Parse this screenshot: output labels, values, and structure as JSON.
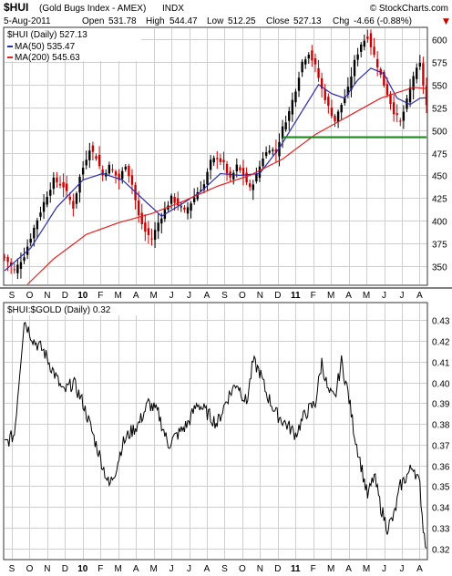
{
  "header": {
    "symbol": "$HUI",
    "name": "(Gold Bugs Index - AMEX)",
    "exchange": "INDX",
    "copyright": "© StockCharts.com",
    "date": "5-Aug-2011",
    "open_label": "Open",
    "open": "531.78",
    "high_label": "High",
    "high": "544.47",
    "low_label": "Low",
    "low": "512.25",
    "close_label": "Close",
    "close": "527.13",
    "chg_label": "Chg",
    "chg": "-4.66 (-0.88%)",
    "chg_arrow": "▼"
  },
  "top_legend": {
    "main": "$HUI (Daily) 527.13",
    "ma50": "MA(50) 535.47",
    "ma200": "MA(200) 545.63"
  },
  "bottom_legend": {
    "main": "$HUI:$GOLD (Daily) 0.32"
  },
  "colors": {
    "price_up": "#000000",
    "price_down": "#cc0000",
    "ma50": "#2b2bb0",
    "ma200": "#e62020",
    "support": "#1a8a1a",
    "ratio": "#000000",
    "chg": "#cc0000"
  },
  "chart_data": [
    {
      "type": "line",
      "ylim": [
        330,
        612
      ],
      "y_ticks": [
        "350",
        "375",
        "400",
        "425",
        "450",
        "475",
        "500",
        "525",
        "550",
        "575",
        "600"
      ],
      "x_ticks": [
        "S",
        "O",
        "N",
        "D",
        "10",
        "F",
        "M",
        "A",
        "M",
        "J",
        "J",
        "A",
        "S",
        "O",
        "N",
        "D",
        "11",
        "F",
        "M",
        "A",
        "M",
        "J",
        "J",
        "A"
      ],
      "price_anchors": [
        [
          0,
          360
        ],
        [
          3,
          345
        ],
        [
          6,
          362
        ],
        [
          9,
          392
        ],
        [
          12,
          420
        ],
        [
          15,
          445
        ],
        [
          18,
          438
        ],
        [
          21,
          415
        ],
        [
          23,
          448
        ],
        [
          26,
          480
        ],
        [
          28,
          470
        ],
        [
          30,
          450
        ],
        [
          32,
          460
        ],
        [
          35,
          445
        ],
        [
          37,
          462
        ],
        [
          39,
          440
        ],
        [
          41,
          405
        ],
        [
          43,
          388
        ],
        [
          45,
          380
        ],
        [
          47,
          398
        ],
        [
          49,
          412
        ],
        [
          51,
          425
        ],
        [
          53,
          418
        ],
        [
          55,
          410
        ],
        [
          57,
          420
        ],
        [
          59,
          432
        ],
        [
          61,
          440
        ],
        [
          63,
          465
        ],
        [
          65,
          470
        ],
        [
          67,
          462
        ],
        [
          69,
          445
        ],
        [
          71,
          460
        ],
        [
          73,
          450
        ],
        [
          75,
          435
        ],
        [
          77,
          450
        ],
        [
          79,
          470
        ],
        [
          81,
          480
        ],
        [
          83,
          475
        ],
        [
          85,
          502
        ],
        [
          87,
          520
        ],
        [
          89,
          545
        ],
        [
          91,
          575
        ],
        [
          93,
          585
        ],
        [
          95,
          570
        ],
        [
          97,
          545
        ],
        [
          99,
          525
        ],
        [
          101,
          510
        ],
        [
          103,
          528
        ],
        [
          105,
          545
        ],
        [
          107,
          575
        ],
        [
          109,
          595
        ],
        [
          111,
          603
        ],
        [
          113,
          582
        ],
        [
          115,
          560
        ],
        [
          117,
          540
        ],
        [
          119,
          520
        ],
        [
          121,
          508
        ],
        [
          123,
          532
        ],
        [
          125,
          560
        ],
        [
          127,
          572
        ],
        [
          128,
          550
        ],
        [
          129,
          527
        ]
      ],
      "ma50": [
        [
          0,
          345
        ],
        [
          8,
          370
        ],
        [
          16,
          415
        ],
        [
          24,
          445
        ],
        [
          30,
          452
        ],
        [
          36,
          445
        ],
        [
          42,
          425
        ],
        [
          48,
          405
        ],
        [
          54,
          418
        ],
        [
          60,
          432
        ],
        [
          66,
          452
        ],
        [
          72,
          450
        ],
        [
          78,
          452
        ],
        [
          84,
          480
        ],
        [
          90,
          515
        ],
        [
          96,
          550
        ],
        [
          100,
          540
        ],
        [
          104,
          535
        ],
        [
          108,
          555
        ],
        [
          112,
          568
        ],
        [
          116,
          562
        ],
        [
          120,
          535
        ],
        [
          124,
          528
        ],
        [
          127,
          535
        ],
        [
          129,
          535.47
        ]
      ],
      "ma200": [
        [
          7,
          330
        ],
        [
          15,
          358
        ],
        [
          25,
          385
        ],
        [
          35,
          398
        ],
        [
          45,
          408
        ],
        [
          55,
          422
        ],
        [
          65,
          438
        ],
        [
          75,
          450
        ],
        [
          85,
          468
        ],
        [
          95,
          495
        ],
        [
          105,
          515
        ],
        [
          115,
          535
        ],
        [
          125,
          547
        ],
        [
          129,
          545.63
        ]
      ],
      "support_level": 492,
      "support_range": [
        85,
        129
      ]
    },
    {
      "type": "line",
      "ylim": [
        0.315,
        0.438
      ],
      "y_ticks": [
        "0.43",
        "0.42",
        "0.41",
        "0.40",
        "0.39",
        "0.38",
        "0.37",
        "0.36",
        "0.35",
        "0.34",
        "0.33",
        "0.32"
      ],
      "x_ticks": [
        "S",
        "O",
        "N",
        "D",
        "10",
        "F",
        "M",
        "A",
        "M",
        "J",
        "J",
        "A",
        "S",
        "O",
        "N",
        "D",
        "11",
        "F",
        "M",
        "A",
        "M",
        "J",
        "J",
        "A"
      ],
      "ratio_anchors": [
        [
          0,
          0.37
        ],
        [
          3,
          0.375
        ],
        [
          6,
          0.43
        ],
        [
          9,
          0.42
        ],
        [
          12,
          0.415
        ],
        [
          15,
          0.405
        ],
        [
          18,
          0.395
        ],
        [
          21,
          0.4
        ],
        [
          24,
          0.39
        ],
        [
          27,
          0.375
        ],
        [
          30,
          0.36
        ],
        [
          32,
          0.35
        ],
        [
          34,
          0.358
        ],
        [
          36,
          0.37
        ],
        [
          38,
          0.375
        ],
        [
          41,
          0.38
        ],
        [
          44,
          0.39
        ],
        [
          47,
          0.385
        ],
        [
          50,
          0.37
        ],
        [
          53,
          0.375
        ],
        [
          56,
          0.38
        ],
        [
          59,
          0.39
        ],
        [
          62,
          0.385
        ],
        [
          65,
          0.38
        ],
        [
          68,
          0.392
        ],
        [
          71,
          0.4
        ],
        [
          74,
          0.39
        ],
        [
          76,
          0.41
        ],
        [
          78,
          0.405
        ],
        [
          80,
          0.395
        ],
        [
          83,
          0.385
        ],
        [
          86,
          0.38
        ],
        [
          89,
          0.375
        ],
        [
          92,
          0.385
        ],
        [
          95,
          0.39
        ],
        [
          97,
          0.41
        ],
        [
          99,
          0.395
        ],
        [
          101,
          0.392
        ],
        [
          103,
          0.41
        ],
        [
          105,
          0.395
        ],
        [
          107,
          0.375
        ],
        [
          109,
          0.36
        ],
        [
          111,
          0.345
        ],
        [
          113,
          0.355
        ],
        [
          115,
          0.34
        ],
        [
          117,
          0.33
        ],
        [
          119,
          0.335
        ],
        [
          121,
          0.35
        ],
        [
          123,
          0.355
        ],
        [
          125,
          0.36
        ],
        [
          127,
          0.35
        ],
        [
          128,
          0.33
        ],
        [
          129,
          0.32
        ]
      ]
    }
  ]
}
